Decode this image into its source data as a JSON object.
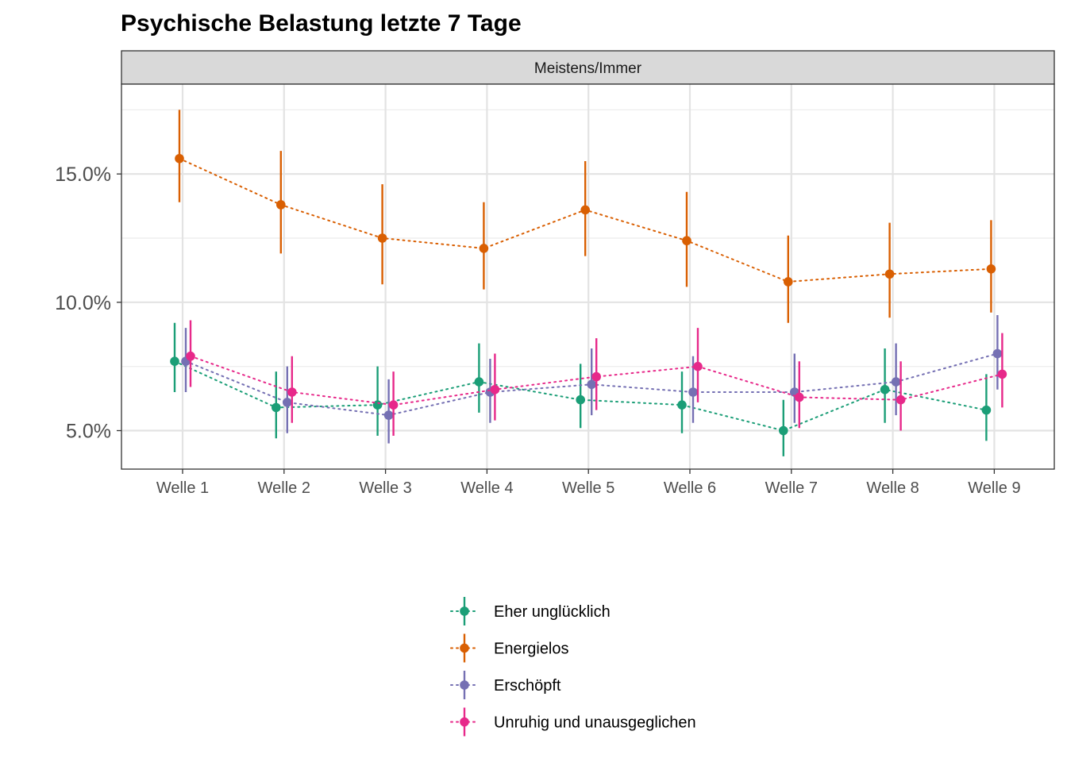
{
  "chart_data": {
    "type": "line",
    "title": "Psychische Belastung letzte 7 Tage",
    "facet_label": "Meistens/Immer",
    "xlabel": "",
    "ylabel": "",
    "categories": [
      "Welle 1",
      "Welle 2",
      "Welle 3",
      "Welle 4",
      "Welle 5",
      "Welle 6",
      "Welle 7",
      "Welle 8",
      "Welle 9"
    ],
    "ylim": [
      3.5,
      18.5
    ],
    "yticks": [
      5.0,
      10.0,
      15.0
    ],
    "ytick_labels": [
      "5.0%",
      "10.0%",
      "15.0%"
    ],
    "grid": true,
    "legend_position": "bottom",
    "series": [
      {
        "name": "Eher unglücklich",
        "color": "#1b9e77",
        "values": [
          7.7,
          5.9,
          6.0,
          6.9,
          6.2,
          6.0,
          5.0,
          6.6,
          5.8
        ],
        "lower": [
          6.5,
          4.7,
          4.8,
          5.7,
          5.1,
          4.9,
          4.0,
          5.3,
          4.6
        ],
        "upper": [
          9.2,
          7.3,
          7.5,
          8.4,
          7.6,
          7.3,
          6.2,
          8.2,
          7.2
        ]
      },
      {
        "name": "Energielos",
        "color": "#d95f02",
        "values": [
          15.6,
          13.8,
          12.5,
          12.1,
          13.6,
          12.4,
          10.8,
          11.1,
          11.3
        ],
        "lower": [
          13.9,
          11.9,
          10.7,
          10.5,
          11.8,
          10.6,
          9.2,
          9.4,
          9.6
        ],
        "upper": [
          17.5,
          15.9,
          14.6,
          13.9,
          15.5,
          14.3,
          12.6,
          13.1,
          13.2
        ]
      },
      {
        "name": "Erschöpft",
        "color": "#7570b3",
        "values": [
          7.7,
          6.1,
          5.6,
          6.5,
          6.8,
          6.5,
          6.5,
          6.9,
          8.0
        ],
        "lower": [
          6.5,
          4.9,
          4.5,
          5.3,
          5.6,
          5.3,
          5.3,
          5.6,
          6.6
        ],
        "upper": [
          9.0,
          7.5,
          7.0,
          7.8,
          8.2,
          7.9,
          8.0,
          8.4,
          9.5
        ]
      },
      {
        "name": "Unruhig und unausgeglichen",
        "color": "#e7298a",
        "values": [
          7.9,
          6.5,
          6.0,
          6.6,
          7.1,
          7.5,
          6.3,
          6.2,
          7.2
        ],
        "lower": [
          6.7,
          5.3,
          4.8,
          5.4,
          5.8,
          6.1,
          5.1,
          5.0,
          5.9
        ],
        "upper": [
          9.3,
          7.9,
          7.3,
          8.0,
          8.6,
          9.0,
          7.7,
          7.7,
          8.8
        ]
      }
    ]
  }
}
